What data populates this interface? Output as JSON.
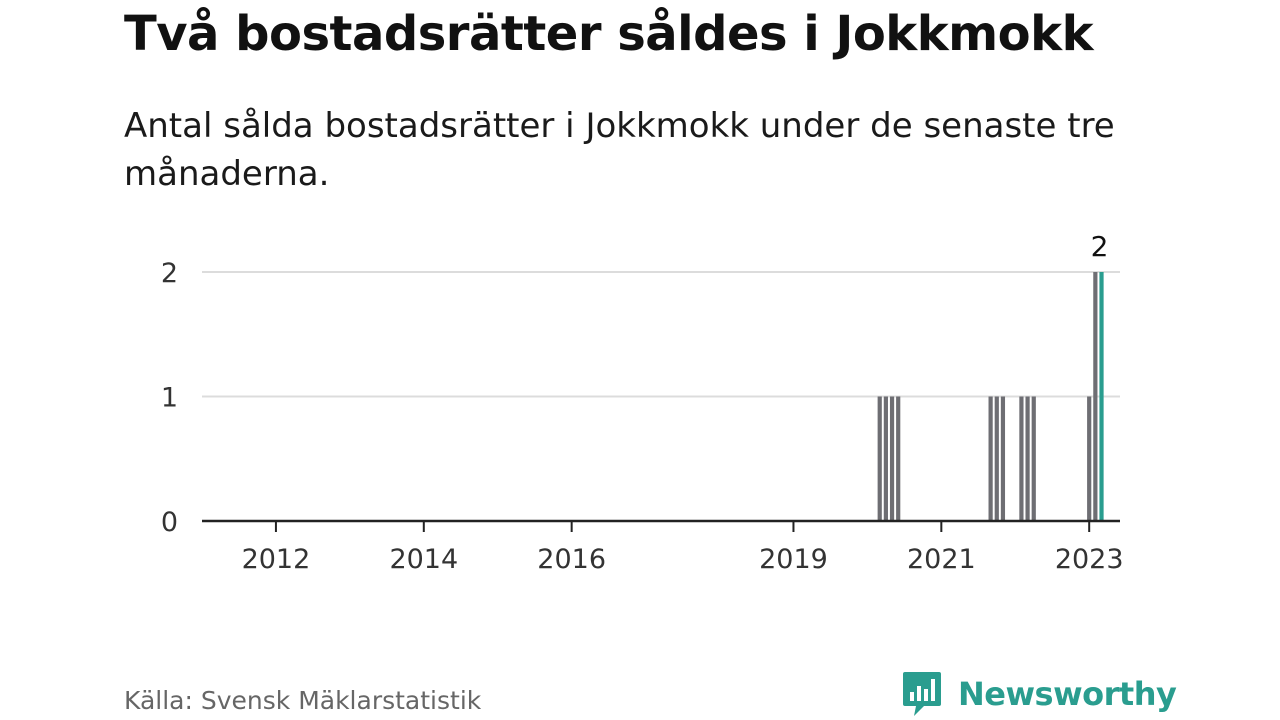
{
  "title": "Två bostadsrätter såldes i Jokkmokk",
  "subtitle": "Antal sålda bostadsrätter i Jokkmokk under de senaste tre månaderna.",
  "source": "Källa: Svensk Mäklarstatistik",
  "brand": {
    "name": "Newsworthy",
    "icon": "newsworthy-logo-icon"
  },
  "colors": {
    "bar": "#6e6e73",
    "highlight": "#2a9d8f",
    "grid": "#dcdcdc",
    "axis": "#222222"
  },
  "chart_data": {
    "type": "bar",
    "title": "Två bostadsrätter såldes i Jokkmokk",
    "subtitle": "Antal sålda bostadsrätter i Jokkmokk under de senaste tre månaderna.",
    "xlabel": "",
    "ylabel": "",
    "ylim": [
      0,
      2
    ],
    "yticks": [
      0,
      1,
      2
    ],
    "xticks": [
      "2012",
      "2014",
      "2016",
      "2019",
      "2021",
      "2023"
    ],
    "x_range": [
      "2011-01",
      "2023-06"
    ],
    "grid": true,
    "legend": "none",
    "bars": [
      {
        "x": "2020-03",
        "value": 1
      },
      {
        "x": "2020-04",
        "value": 1
      },
      {
        "x": "2020-05",
        "value": 1
      },
      {
        "x": "2020-06",
        "value": 1
      },
      {
        "x": "2021-09",
        "value": 1
      },
      {
        "x": "2021-10",
        "value": 1
      },
      {
        "x": "2021-11",
        "value": 1
      },
      {
        "x": "2022-02",
        "value": 1
      },
      {
        "x": "2022-03",
        "value": 1
      },
      {
        "x": "2022-04",
        "value": 1
      },
      {
        "x": "2023-01",
        "value": 1
      },
      {
        "x": "2023-02",
        "value": 2
      },
      {
        "x": "2023-03",
        "value": 2,
        "highlight": true
      }
    ],
    "annotations": [
      {
        "x": "2023-03",
        "text": "2"
      }
    ]
  }
}
